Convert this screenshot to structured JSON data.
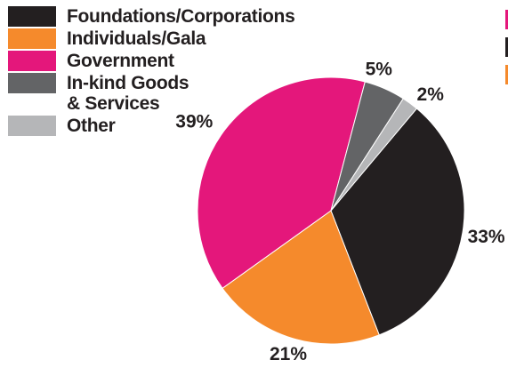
{
  "chart_data": {
    "type": "pie",
    "title": "",
    "slices": [
      {
        "label": "Foundations/Corporations",
        "value": 33,
        "data_label": "33%",
        "color": "#231f20"
      },
      {
        "label": "Individuals/Gala",
        "value": 21,
        "data_label": "21%",
        "color": "#f58a2c"
      },
      {
        "label": "Government",
        "value": 39,
        "data_label": "39%",
        "color": "#e4177b"
      },
      {
        "label": "In-kind Goods\n& Services",
        "value": 5,
        "data_label": "5%",
        "color": "#636466"
      },
      {
        "label": "Other",
        "value": 2,
        "data_label": "2%",
        "color": "#b5b6b8"
      }
    ],
    "legend_placement": "top-left"
  },
  "decor": {
    "right_marks": [
      "#e4177b",
      "#231f20",
      "#f58a2c"
    ]
  }
}
